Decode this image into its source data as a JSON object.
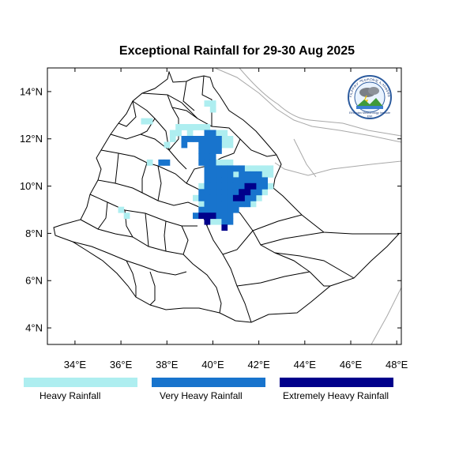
{
  "title": "Exceptional Rainfall for 29-30 Aug 2025",
  "axes": {
    "lon_ticks": [
      {
        "value": 34,
        "label": "34°E"
      },
      {
        "value": 36,
        "label": "36°E"
      },
      {
        "value": 38,
        "label": "38°E"
      },
      {
        "value": 40,
        "label": "40°E"
      },
      {
        "value": 42,
        "label": "42°E"
      },
      {
        "value": 44,
        "label": "44°E"
      },
      {
        "value": 46,
        "label": "46°E"
      },
      {
        "value": 48,
        "label": "48°E"
      }
    ],
    "lat_ticks": [
      {
        "value": 4,
        "label": "4°N"
      },
      {
        "value": 6,
        "label": "6°N"
      },
      {
        "value": 8,
        "label": "8°N"
      },
      {
        "value": 10,
        "label": "10°N"
      },
      {
        "value": 12,
        "label": "12°N"
      },
      {
        "value": 14,
        "label": "14°N"
      }
    ],
    "lon_range": [
      32.8,
      48.2
    ],
    "lat_range": [
      3.3,
      15.0
    ]
  },
  "legend": [
    {
      "key": "heavy",
      "label": "Heavy Rainfall",
      "color": "#aeeef0"
    },
    {
      "key": "very_heavy",
      "label": "Very Heavy Rainfall",
      "color": "#1874cd"
    },
    {
      "key": "extreme",
      "label": "Extremely Heavy Rainfall",
      "color": "#00008b"
    }
  ],
  "rainfall_cells": {
    "heavy": [
      [
        38.5,
        12.5
      ],
      [
        38.75,
        12.5
      ],
      [
        39.0,
        12.5
      ],
      [
        39.25,
        12.5
      ],
      [
        39.5,
        12.5
      ],
      [
        39.75,
        12.5
      ],
      [
        38.25,
        12.25
      ],
      [
        38.5,
        12.25
      ],
      [
        39.0,
        12.25
      ],
      [
        40.25,
        12.25
      ],
      [
        40.5,
        12.25
      ],
      [
        38.25,
        12.0
      ],
      [
        40.5,
        12.0
      ],
      [
        40.75,
        12.0
      ],
      [
        38.0,
        11.75
      ],
      [
        40.5,
        11.75
      ],
      [
        40.75,
        11.75
      ],
      [
        40.25,
        11.0
      ],
      [
        40.5,
        11.0
      ],
      [
        40.75,
        11.0
      ],
      [
        41.5,
        10.75
      ],
      [
        41.75,
        10.75
      ],
      [
        42.0,
        10.75
      ],
      [
        42.25,
        10.75
      ],
      [
        42.5,
        10.75
      ],
      [
        41.0,
        10.5
      ],
      [
        42.25,
        10.5
      ],
      [
        42.5,
        10.5
      ],
      [
        39.5,
        10.0
      ],
      [
        42.5,
        10.0
      ],
      [
        42.25,
        9.75
      ],
      [
        42.0,
        9.5
      ],
      [
        41.75,
        9.25
      ],
      [
        39.25,
        9.5
      ],
      [
        39.5,
        9.25
      ],
      [
        40.0,
        8.5
      ],
      [
        40.25,
        8.5
      ],
      [
        36.0,
        9.0
      ],
      [
        36.25,
        8.75
      ],
      [
        37.25,
        11.0
      ],
      [
        39.75,
        13.5
      ],
      [
        40.0,
        13.5
      ],
      [
        40.0,
        13.25
      ],
      [
        37.0,
        12.75
      ],
      [
        37.25,
        12.75
      ]
    ],
    "very_heavy": [
      [
        39.75,
        12.25
      ],
      [
        40.0,
        12.25
      ],
      [
        38.75,
        12.0
      ],
      [
        39.0,
        12.0
      ],
      [
        39.25,
        12.0
      ],
      [
        39.5,
        12.0
      ],
      [
        39.75,
        12.0
      ],
      [
        40.0,
        12.0
      ],
      [
        40.25,
        12.0
      ],
      [
        38.75,
        11.75
      ],
      [
        39.5,
        11.75
      ],
      [
        39.75,
        11.75
      ],
      [
        40.0,
        11.75
      ],
      [
        40.25,
        11.75
      ],
      [
        39.5,
        11.5
      ],
      [
        39.75,
        11.5
      ],
      [
        40.0,
        11.5
      ],
      [
        40.25,
        11.5
      ],
      [
        39.5,
        11.25
      ],
      [
        39.75,
        11.25
      ],
      [
        40.0,
        11.25
      ],
      [
        37.75,
        11.0
      ],
      [
        38.0,
        11.0
      ],
      [
        39.5,
        11.0
      ],
      [
        39.75,
        11.0
      ],
      [
        40.0,
        11.0
      ],
      [
        39.75,
        10.75
      ],
      [
        40.0,
        10.75
      ],
      [
        40.25,
        10.75
      ],
      [
        40.5,
        10.75
      ],
      [
        40.75,
        10.75
      ],
      [
        41.0,
        10.75
      ],
      [
        41.25,
        10.75
      ],
      [
        39.75,
        10.5
      ],
      [
        40.0,
        10.5
      ],
      [
        40.25,
        10.5
      ],
      [
        40.5,
        10.5
      ],
      [
        40.75,
        10.5
      ],
      [
        41.25,
        10.5
      ],
      [
        41.5,
        10.5
      ],
      [
        41.75,
        10.5
      ],
      [
        42.0,
        10.5
      ],
      [
        39.75,
        10.25
      ],
      [
        40.0,
        10.25
      ],
      [
        40.25,
        10.25
      ],
      [
        40.5,
        10.25
      ],
      [
        40.75,
        10.25
      ],
      [
        41.0,
        10.25
      ],
      [
        41.25,
        10.25
      ],
      [
        41.5,
        10.25
      ],
      [
        41.75,
        10.25
      ],
      [
        42.0,
        10.25
      ],
      [
        42.25,
        10.25
      ],
      [
        39.75,
        10.0
      ],
      [
        40.0,
        10.0
      ],
      [
        40.25,
        10.0
      ],
      [
        40.5,
        10.0
      ],
      [
        40.75,
        10.0
      ],
      [
        41.0,
        10.0
      ],
      [
        41.25,
        10.0
      ],
      [
        41.5,
        10.0
      ],
      [
        41.75,
        10.0
      ],
      [
        42.0,
        10.0
      ],
      [
        42.25,
        10.0
      ],
      [
        39.5,
        9.75
      ],
      [
        39.75,
        9.75
      ],
      [
        40.0,
        9.75
      ],
      [
        40.25,
        9.75
      ],
      [
        40.5,
        9.75
      ],
      [
        40.75,
        9.75
      ],
      [
        41.0,
        9.75
      ],
      [
        41.25,
        9.75
      ],
      [
        41.5,
        9.75
      ],
      [
        41.75,
        9.75
      ],
      [
        42.0,
        9.75
      ],
      [
        39.5,
        9.5
      ],
      [
        39.75,
        9.5
      ],
      [
        40.0,
        9.5
      ],
      [
        40.25,
        9.5
      ],
      [
        40.5,
        9.5
      ],
      [
        40.75,
        9.5
      ],
      [
        41.0,
        9.5
      ],
      [
        41.25,
        9.5
      ],
      [
        41.5,
        9.5
      ],
      [
        41.75,
        9.5
      ],
      [
        39.75,
        9.25
      ],
      [
        40.0,
        9.25
      ],
      [
        40.25,
        9.25
      ],
      [
        40.5,
        9.25
      ],
      [
        40.75,
        9.25
      ],
      [
        41.0,
        9.25
      ],
      [
        41.25,
        9.25
      ],
      [
        41.5,
        9.25
      ],
      [
        39.5,
        9.0
      ],
      [
        39.75,
        9.0
      ],
      [
        40.0,
        9.0
      ],
      [
        40.25,
        9.0
      ],
      [
        40.5,
        9.0
      ],
      [
        40.75,
        9.0
      ],
      [
        41.0,
        9.0
      ],
      [
        39.25,
        8.75
      ],
      [
        40.25,
        8.75
      ],
      [
        40.5,
        8.75
      ],
      [
        40.75,
        8.75
      ],
      [
        40.5,
        8.5
      ],
      [
        40.75,
        8.5
      ]
    ],
    "extreme": [
      [
        41.5,
        10.0
      ],
      [
        41.75,
        10.0
      ],
      [
        41.25,
        9.75
      ],
      [
        41.5,
        9.75
      ],
      [
        41.0,
        9.5
      ],
      [
        41.25,
        9.5
      ],
      [
        39.5,
        8.75
      ],
      [
        39.75,
        8.75
      ],
      [
        39.75,
        8.5
      ],
      [
        40.0,
        8.75
      ],
      [
        40.5,
        8.25
      ]
    ]
  },
  "logo": {
    "arc_text": "የኢትዮጵያ ሚቲዎሮሎጂ ኢንስቲትዩት",
    "caption": "Ethiopian Meteorology Institute",
    "sub": "EMI"
  }
}
